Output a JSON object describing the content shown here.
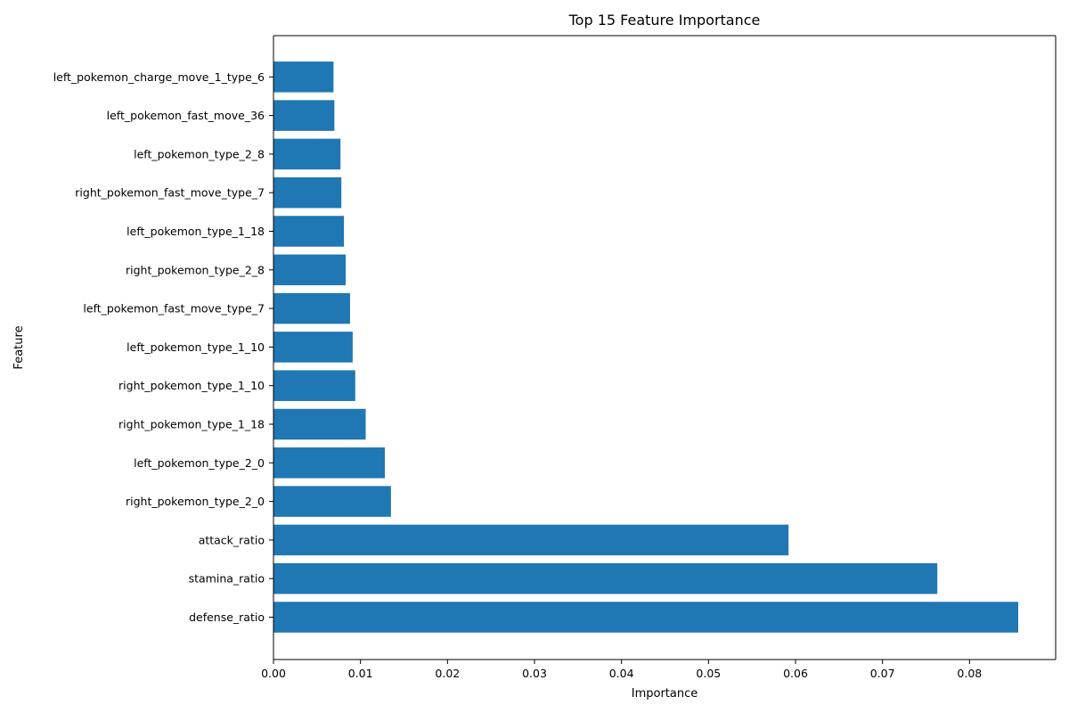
{
  "chart_data": {
    "type": "bar",
    "orientation": "horizontal",
    "title": "Top 15 Feature Importance",
    "xlabel": "Importance",
    "ylabel": "Feature",
    "xlim": [
      0,
      0.0899
    ],
    "x_ticks": [
      0,
      0.01,
      0.02,
      0.03,
      0.04,
      0.05,
      0.06,
      0.07,
      0.08
    ],
    "x_tick_labels": [
      "0.00",
      "0.01",
      "0.02",
      "0.03",
      "0.04",
      "0.05",
      "0.06",
      "0.07",
      "0.08"
    ],
    "grid": false,
    "bar_color": "#1f77b4",
    "categories": [
      "defense_ratio",
      "stamina_ratio",
      "attack_ratio",
      "right_pokemon_type_2_0",
      "left_pokemon_type_2_0",
      "right_pokemon_type_1_18",
      "right_pokemon_type_1_10",
      "left_pokemon_type_1_10",
      "left_pokemon_fast_move_type_7",
      "right_pokemon_type_2_8",
      "left_pokemon_type_1_18",
      "right_pokemon_fast_move_type_7",
      "left_pokemon_type_2_8",
      "left_pokemon_fast_move_36",
      "left_pokemon_charge_move_1_type_6"
    ],
    "values": [
      0.0856,
      0.0763,
      0.0592,
      0.0135,
      0.0128,
      0.0106,
      0.0094,
      0.0091,
      0.0088,
      0.0083,
      0.0081,
      0.0078,
      0.0077,
      0.007,
      0.0069
    ]
  }
}
